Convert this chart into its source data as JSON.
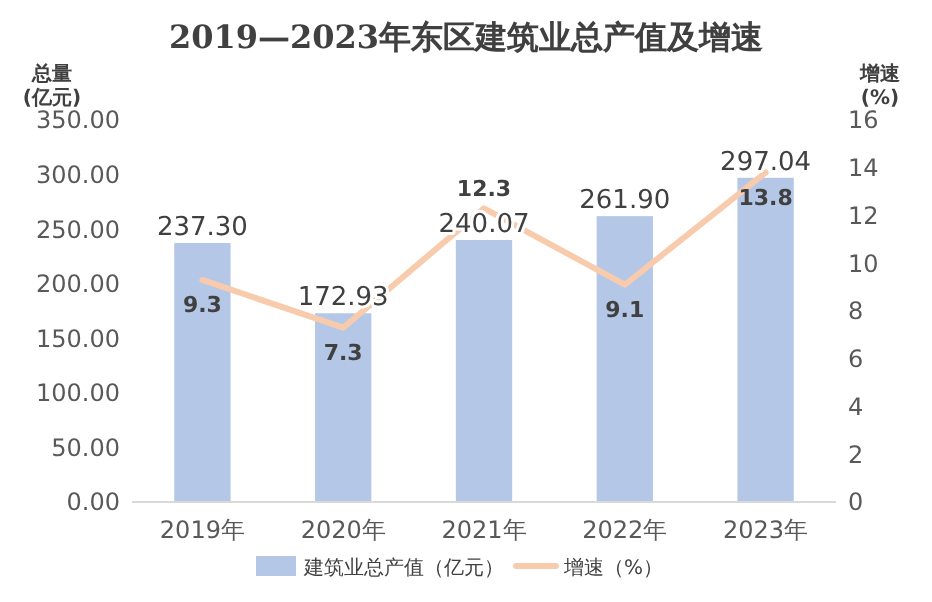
{
  "chart_data": {
    "type": "bar",
    "title": "2019—2023年东区建筑业总产值及增速",
    "ylabel": "总量\n(亿元)",
    "y2label": "增速\n(%)",
    "categories": [
      "2019年",
      "2020年",
      "2021年",
      "2022年",
      "2023年"
    ],
    "series": [
      {
        "name": "建筑业总产值（亿元）",
        "color": "#b4c7e7",
        "values": [
          237.3,
          172.93,
          240.07,
          261.9,
          297.04
        ],
        "value_labels": [
          "237.30",
          "172.93",
          "240.07",
          "261.90",
          "297.04"
        ]
      },
      {
        "name": "增速（%）",
        "type": "line",
        "axis": "y2",
        "color": "#f8cbad",
        "values": [
          9.3,
          7.3,
          12.3,
          9.1,
          13.8
        ],
        "value_labels": [
          "9.3",
          "7.3",
          "12.3",
          "9.1",
          "13.8"
        ]
      }
    ],
    "ylim": [
      0,
      350
    ],
    "yticks": [
      {
        "value": 0,
        "label": "0.00"
      },
      {
        "value": 50,
        "label": "50.00"
      },
      {
        "value": 100,
        "label": "100.00"
      },
      {
        "value": 150,
        "label": "150.00"
      },
      {
        "value": 200,
        "label": "200.00"
      },
      {
        "value": 250,
        "label": "250.00"
      },
      {
        "value": 300,
        "label": "300.00"
      },
      {
        "value": 350,
        "label": "350.00"
      }
    ],
    "y2lim": [
      0,
      16
    ],
    "y2ticks": [
      0,
      2,
      4,
      6,
      8,
      10,
      12,
      14,
      16
    ],
    "legend": "bottom",
    "marker": "none",
    "line_style": "solid"
  }
}
